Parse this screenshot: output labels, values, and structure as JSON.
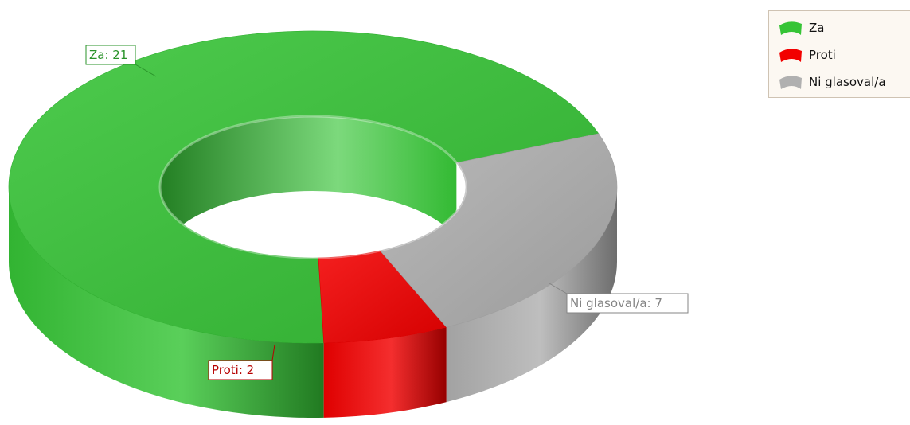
{
  "chart_data": {
    "type": "pie",
    "variant": "3d-doughnut",
    "categories": [
      "Za",
      "Proti",
      "Ni glasoval/a"
    ],
    "values": [
      21,
      2,
      7
    ],
    "colors": [
      "#36c436",
      "#f20000",
      "#b0b0b0"
    ],
    "data_labels": [
      "Za: 21",
      "Proti: 2",
      "Ni glasoval/a: 7"
    ],
    "legend_position": "top-right",
    "title": "",
    "xlabel": "",
    "ylabel": ""
  },
  "legend": {
    "items": [
      {
        "label": "Za",
        "color": "#36c436"
      },
      {
        "label": "Proti",
        "color": "#f20000"
      },
      {
        "label": "Ni glasoval/a",
        "color": "#b0b0b0"
      }
    ]
  }
}
